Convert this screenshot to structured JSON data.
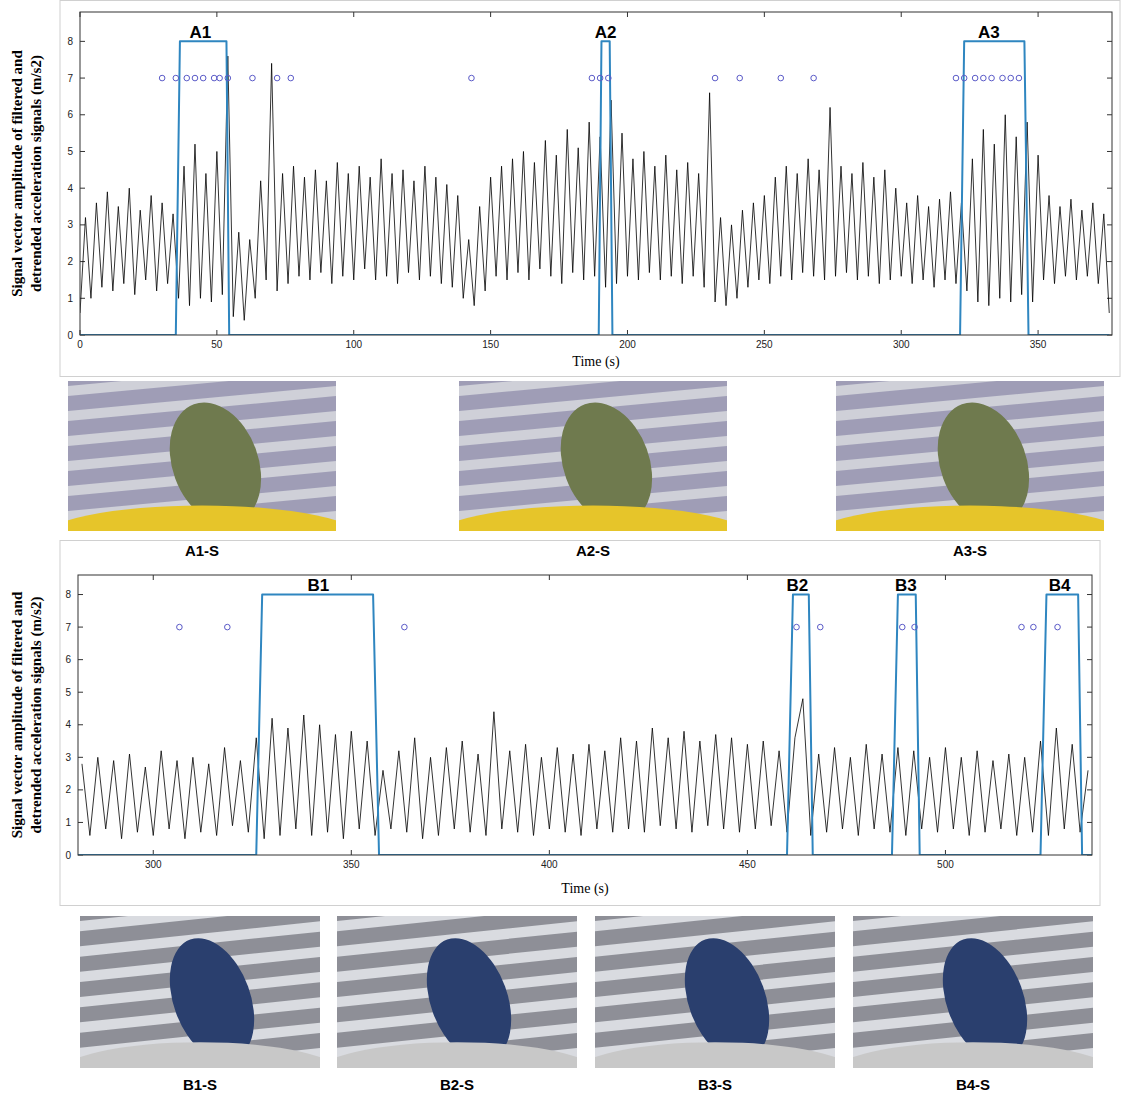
{
  "chart_data": [
    {
      "type": "line",
      "x_label": "Time (s)",
      "y_label": "Signal vector amplitude of filtered and detrended acceleration signals (m/s2)",
      "xlim": [
        0,
        377
      ],
      "xticks": [
        0,
        50,
        100,
        150,
        200,
        250,
        300,
        350
      ],
      "ylim": [
        0,
        8.8
      ],
      "yticks": [
        0,
        1,
        2,
        3,
        4,
        5,
        6,
        7,
        8
      ],
      "grid": false,
      "series": [
        {
          "type": "line",
          "color": "#000000",
          "line_style": "solid",
          "x": [
            0,
            2,
            4,
            6,
            8,
            10,
            12,
            14,
            16,
            18,
            20,
            22,
            24,
            26,
            28,
            30,
            32,
            34,
            36,
            38,
            40,
            42,
            44,
            46,
            48,
            50,
            52,
            54,
            56,
            58,
            60,
            62,
            64,
            66,
            68,
            70,
            72,
            74,
            76,
            78,
            80,
            82,
            84,
            86,
            88,
            90,
            92,
            94,
            96,
            98,
            100,
            102,
            104,
            106,
            108,
            110,
            112,
            114,
            116,
            118,
            120,
            122,
            124,
            126,
            128,
            130,
            132,
            134,
            136,
            138,
            140,
            142,
            144,
            146,
            148,
            150,
            152,
            154,
            156,
            158,
            160,
            162,
            164,
            166,
            168,
            170,
            172,
            174,
            176,
            178,
            180,
            182,
            184,
            186,
            188,
            190,
            192,
            194,
            196,
            198,
            200,
            202,
            204,
            206,
            208,
            210,
            212,
            214,
            216,
            218,
            220,
            222,
            224,
            226,
            228,
            230,
            232,
            234,
            236,
            238,
            240,
            242,
            244,
            246,
            248,
            250,
            252,
            254,
            256,
            258,
            260,
            262,
            264,
            266,
            268,
            270,
            272,
            274,
            276,
            278,
            280,
            282,
            284,
            286,
            288,
            290,
            292,
            294,
            296,
            298,
            300,
            302,
            304,
            306,
            308,
            310,
            312,
            314,
            316,
            318,
            320,
            322,
            324,
            326,
            328,
            330,
            332,
            334,
            336,
            338,
            340,
            342,
            344,
            346,
            348,
            350,
            352,
            354,
            356,
            358,
            360,
            362,
            364,
            366,
            368,
            370,
            372,
            374,
            376
          ],
          "values": [
            0.6,
            3.2,
            1.0,
            3.6,
            1.3,
            3.9,
            1.2,
            3.5,
            1.4,
            4.0,
            1.1,
            3.4,
            1.5,
            3.8,
            1.2,
            3.6,
            1.4,
            3.3,
            1.0,
            4.6,
            0.8,
            5.2,
            1.0,
            4.4,
            0.9,
            5.0,
            1.1,
            7.6,
            0.5,
            2.8,
            0.4,
            2.6,
            1.0,
            4.2,
            1.5,
            7.4,
            1.2,
            4.4,
            1.4,
            4.6,
            1.6,
            4.3,
            1.5,
            4.5,
            1.7,
            4.2,
            1.4,
            4.7,
            1.6,
            4.4,
            1.5,
            4.6,
            1.8,
            4.3,
            1.5,
            4.8,
            1.6,
            4.4,
            1.4,
            4.5,
            1.7,
            4.2,
            1.5,
            4.6,
            1.6,
            4.3,
            1.4,
            4.1,
            1.3,
            3.8,
            1.0,
            2.6,
            0.8,
            3.5,
            1.2,
            4.3,
            1.6,
            4.6,
            1.5,
            4.8,
            1.7,
            5.0,
            1.5,
            4.7,
            1.8,
            5.3,
            1.6,
            4.9,
            1.4,
            5.6,
            1.7,
            5.1,
            1.5,
            5.8,
            1.6,
            5.4,
            1.3,
            6.4,
            1.4,
            5.5,
            1.6,
            4.8,
            1.5,
            5.0,
            1.7,
            4.6,
            1.5,
            4.9,
            1.6,
            4.5,
            1.4,
            4.7,
            1.6,
            4.4,
            1.3,
            6.6,
            0.9,
            3.2,
            0.8,
            3.0,
            1.0,
            3.4,
            1.3,
            3.6,
            1.5,
            3.8,
            1.4,
            4.3,
            1.6,
            4.6,
            1.5,
            4.4,
            1.7,
            4.8,
            1.6,
            4.5,
            1.5,
            6.2,
            1.6,
            4.6,
            1.7,
            4.4,
            1.5,
            4.7,
            1.6,
            4.3,
            1.4,
            4.5,
            1.5,
            4.0,
            1.6,
            3.6,
            1.4,
            3.8,
            1.5,
            3.5,
            1.3,
            3.7,
            1.5,
            3.9,
            1.4,
            3.6,
            1.2,
            4.8,
            0.9,
            5.6,
            0.8,
            5.2,
            1.0,
            6.0,
            0.9,
            5.4,
            1.1,
            5.8,
            0.9,
            4.9,
            1.5,
            3.8,
            1.4,
            3.5,
            1.6,
            3.7,
            1.5,
            3.4,
            1.6,
            3.6,
            1.4,
            3.3,
            0.6
          ]
        },
        {
          "type": "line",
          "color": "#2f86c0",
          "line_style": "solid",
          "x": [
            0,
            35,
            36.5,
            53.5,
            54.5,
            189.5,
            190.5,
            193.5,
            194.5,
            321.5,
            323,
            345,
            346.5,
            376
          ],
          "values": [
            0,
            0,
            8,
            8,
            0,
            0,
            8,
            8,
            0,
            0,
            8,
            8,
            0,
            0
          ]
        },
        {
          "type": "scatter",
          "color": "#5b5bc8",
          "marker": "circle",
          "x": [
            30,
            35,
            39,
            42,
            45,
            49,
            51,
            54,
            63,
            72,
            77,
            143,
            187,
            190,
            193,
            232,
            241,
            256,
            268,
            320,
            323,
            327,
            330,
            333,
            337,
            340,
            343
          ],
          "values": [
            7,
            7,
            7,
            7,
            7,
            7,
            7,
            7,
            7,
            7,
            7,
            7,
            7,
            7,
            7,
            7,
            7,
            7,
            7,
            7,
            7,
            7,
            7,
            7,
            7,
            7,
            7
          ]
        }
      ],
      "annotations": [
        {
          "text": "A1",
          "x": 44,
          "y": 8.1
        },
        {
          "text": "A2",
          "x": 192,
          "y": 8.1
        },
        {
          "text": "A3",
          "x": 332,
          "y": 8.1
        }
      ],
      "photos": [
        "A1-S",
        "A2-S",
        "A3-S"
      ]
    },
    {
      "type": "line",
      "x_label": "Time (s)",
      "y_label": "Signal vector amplitude of filtered and detrended acceleration signals (m/s2)",
      "xlim": [
        281,
        537
      ],
      "xticks": [
        300,
        350,
        400,
        450,
        500
      ],
      "ylim": [
        0,
        8.6
      ],
      "yticks": [
        0,
        1,
        2,
        3,
        4,
        5,
        6,
        7,
        8
      ],
      "grid": false,
      "series": [
        {
          "type": "line",
          "color": "#000000",
          "line_style": "solid",
          "x": [
            282,
            284,
            286,
            288,
            290,
            292,
            294,
            296,
            298,
            300,
            302,
            304,
            306,
            308,
            310,
            312,
            314,
            316,
            318,
            320,
            322,
            324,
            326,
            328,
            330,
            332,
            334,
            336,
            338,
            340,
            342,
            344,
            346,
            348,
            350,
            352,
            354,
            356,
            358,
            360,
            362,
            364,
            366,
            368,
            370,
            372,
            374,
            376,
            378,
            380,
            382,
            384,
            386,
            388,
            390,
            392,
            394,
            396,
            398,
            400,
            402,
            404,
            406,
            408,
            410,
            412,
            414,
            416,
            418,
            420,
            422,
            424,
            426,
            428,
            430,
            432,
            434,
            436,
            438,
            440,
            442,
            444,
            446,
            448,
            450,
            452,
            454,
            456,
            458,
            460,
            462,
            464,
            466,
            468,
            470,
            472,
            474,
            476,
            478,
            480,
            482,
            484,
            486,
            488,
            490,
            492,
            494,
            496,
            498,
            500,
            502,
            504,
            506,
            508,
            510,
            512,
            514,
            516,
            518,
            520,
            522,
            524,
            526,
            528,
            530,
            532,
            534,
            536
          ],
          "values": [
            2.8,
            0.6,
            3.0,
            0.8,
            2.9,
            0.5,
            3.1,
            0.7,
            2.7,
            0.6,
            3.2,
            0.8,
            2.9,
            0.5,
            3.0,
            0.7,
            2.8,
            0.6,
            3.3,
            0.9,
            2.9,
            0.7,
            3.6,
            0.5,
            4.2,
            0.6,
            3.9,
            0.8,
            4.3,
            0.6,
            4.0,
            0.7,
            3.7,
            0.5,
            3.8,
            0.8,
            3.5,
            0.6,
            2.6,
            0.8,
            3.2,
            0.7,
            3.6,
            0.5,
            3.0,
            0.6,
            3.3,
            0.8,
            3.5,
            0.7,
            3.1,
            0.6,
            4.4,
            0.8,
            3.2,
            0.7,
            3.4,
            0.6,
            3.0,
            0.8,
            3.3,
            0.7,
            3.1,
            0.6,
            3.4,
            0.8,
            3.2,
            0.7,
            3.6,
            0.8,
            3.5,
            0.7,
            3.9,
            0.9,
            3.6,
            0.8,
            3.8,
            0.7,
            3.5,
            0.9,
            3.7,
            0.8,
            3.6,
            0.7,
            3.4,
            0.8,
            3.5,
            0.9,
            3.2,
            0.7,
            3.6,
            4.8,
            0.6,
            3.1,
            0.7,
            3.3,
            0.8,
            3.0,
            0.6,
            3.4,
            0.8,
            3.1,
            0.7,
            3.3,
            0.6,
            3.2,
            0.8,
            3.0,
            0.7,
            3.3,
            0.8,
            3.0,
            0.6,
            3.2,
            0.7,
            2.9,
            0.8,
            3.1,
            0.6,
            3.0,
            0.7,
            3.5,
            0.6,
            3.9,
            0.8,
            3.4,
            0.7,
            2.6
          ]
        },
        {
          "type": "line",
          "color": "#2f86c0",
          "line_style": "solid",
          "x": [
            281,
            326,
            327.5,
            355.5,
            357,
            460,
            461.5,
            465.5,
            466.5,
            486.5,
            488,
            492.5,
            493.5,
            524,
            525.5,
            533.5,
            534.5,
            537
          ],
          "values": [
            0,
            0,
            8,
            8,
            0,
            0,
            8,
            8,
            0,
            0,
            8,
            8,
            0,
            0,
            8,
            8,
            0,
            0
          ]
        },
        {
          "type": "scatter",
          "color": "#5b5bc8",
          "marker": "circle",
          "x": [
            306.6,
            318.7,
            363.4,
            462.4,
            468.4,
            489.1,
            492.2,
            519.2,
            522.2,
            528.3
          ],
          "values": [
            7,
            7,
            7,
            7,
            7,
            7,
            7,
            7,
            7,
            7
          ]
        }
      ],
      "annotations": [
        {
          "text": "B1",
          "x": 341.7,
          "y": 8.1
        },
        {
          "text": "B2",
          "x": 462.6,
          "y": 8.1
        },
        {
          "text": "B3",
          "x": 490,
          "y": 8.1
        },
        {
          "text": "B4",
          "x": 528.8,
          "y": 8.1
        }
      ],
      "photos": [
        "B1-S",
        "B2-S",
        "B3-S",
        "B4-S"
      ]
    }
  ]
}
